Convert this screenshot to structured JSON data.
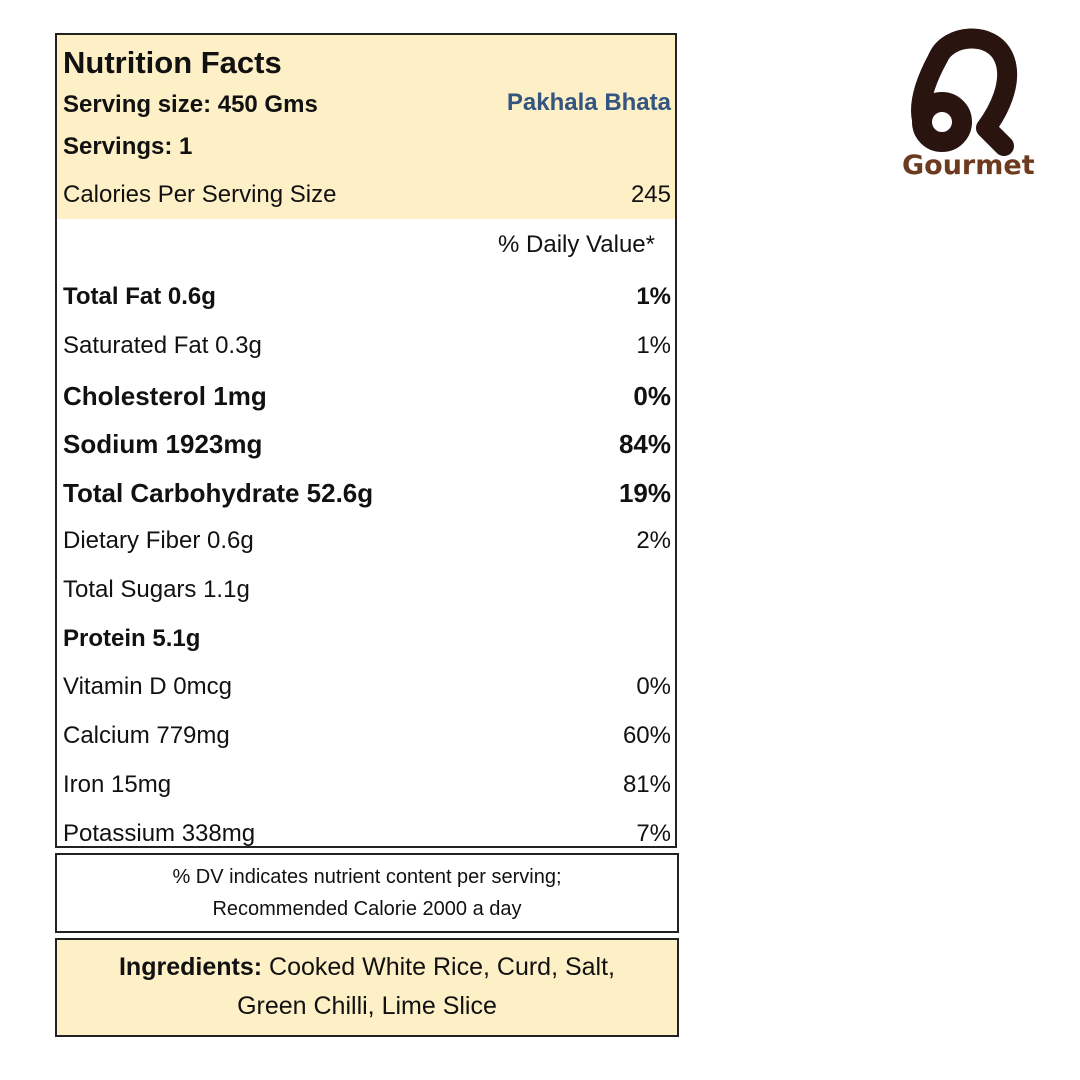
{
  "label": {
    "title": "Nutrition Facts",
    "serving_size": "Serving size: 450 Gms",
    "servings": "Servings: 1",
    "product_name": "Pakhala Bhata",
    "calories_label": "Calories Per Serving Size",
    "calories_value": "245",
    "daily_value_header": "% Daily Value*",
    "nutrients": [
      {
        "label": "Total Fat 0.6g",
        "dv": "1%"
      },
      {
        "label": "Saturated Fat 0.3g",
        "dv": "1%"
      },
      {
        "label": "Cholesterol 1mg",
        "dv": "0%"
      },
      {
        "label": "Sodium 1923mg",
        "dv": "84%"
      },
      {
        "label": "Total Carbohydrate 52.6g",
        "dv": "19%"
      },
      {
        "label": "Dietary Fiber 0.6g",
        "dv": "2%"
      },
      {
        "label": "Total Sugars 1.1g",
        "dv": ""
      },
      {
        "label": "Protein 5.1g",
        "dv": ""
      },
      {
        "label": "Vitamin D 0mcg",
        "dv": "0%"
      },
      {
        "label": "Calcium 779mg",
        "dv": "60%"
      },
      {
        "label": "Iron 15mg",
        "dv": "81%"
      },
      {
        "label": "Potassium 338mg",
        "dv": "7%"
      }
    ]
  },
  "note": {
    "line1": "% DV indicates nutrient content per serving;",
    "line2": "Recommended Calorie 2000 a day"
  },
  "ingredients": {
    "heading": "Ingredients:",
    "text": "Cooked White Rice, Curd, Salt, Green Chilli, Lime Slice"
  },
  "brand": {
    "name": "Gourmet",
    "logo_icon": "brand-monogram-logo",
    "colors": {
      "logo_dark": "#2a1410",
      "logo_text": "#6b3a1f",
      "header_fill": "#fdefc6",
      "product_text": "#34557f"
    }
  }
}
